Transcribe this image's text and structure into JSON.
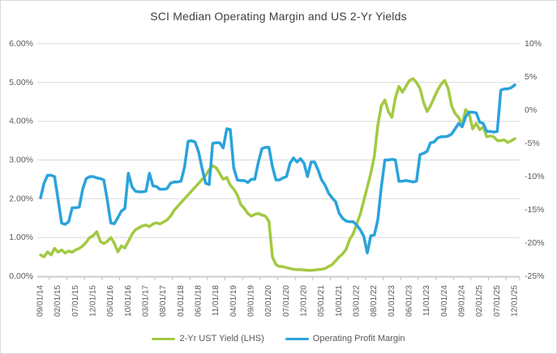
{
  "chart_data": {
    "type": "line",
    "title": "SCI Median Operating Margin and US 2-Yr Yields",
    "grid": "horizontal",
    "legend_position": "bottom",
    "x_frequency": "monthly",
    "x_tick_labels": [
      "09/01/14",
      "02/01/15",
      "07/01/15",
      "12/01/15",
      "05/01/16",
      "10/01/16",
      "03/01/17",
      "08/01/17",
      "01/01/18",
      "06/01/18",
      "11/01/18",
      "04/01/19",
      "09/01/19",
      "02/01/20",
      "07/01/20",
      "12/01/20",
      "05/01/21",
      "10/01/21",
      "03/01/22",
      "08/01/22",
      "01/01/23",
      "06/01/23",
      "11/01/23",
      "04/01/24",
      "09/01/24",
      "02/01/25",
      "07/01/25",
      "12/01/25"
    ],
    "x_label_interval_months": 5,
    "left_axis": {
      "ticks": [
        "6.00%",
        "5.00%",
        "4.00%",
        "3.00%",
        "2.00%",
        "1.00%",
        "0.00%"
      ],
      "tick_values": [
        6,
        5,
        4,
        3,
        2,
        1,
        0
      ],
      "min": 0,
      "max": 6
    },
    "right_axis": {
      "ticks": [
        "10%",
        "5%",
        "0%",
        "-5%",
        "-10%",
        "-15%",
        "-20%",
        "-25%"
      ],
      "tick_values": [
        10,
        5,
        0,
        -5,
        -10,
        -15,
        -20,
        -25
      ],
      "min": -25,
      "max": 10
    },
    "series": [
      {
        "name": "2-Yr UST Yield (LHS)",
        "axis": "left",
        "color": "#a3c942",
        "values": [
          0.55,
          0.5,
          0.63,
          0.55,
          0.72,
          0.62,
          0.68,
          0.6,
          0.65,
          0.62,
          0.68,
          0.72,
          0.78,
          0.88,
          1.0,
          1.05,
          1.15,
          0.9,
          0.84,
          0.9,
          1.0,
          0.85,
          0.63,
          0.78,
          0.73,
          0.9,
          1.08,
          1.2,
          1.25,
          1.3,
          1.32,
          1.28,
          1.35,
          1.38,
          1.35,
          1.4,
          1.45,
          1.55,
          1.7,
          1.8,
          1.9,
          2.0,
          2.1,
          2.2,
          2.3,
          2.4,
          2.5,
          2.6,
          2.75,
          2.85,
          2.8,
          2.65,
          2.5,
          2.55,
          2.35,
          2.25,
          2.1,
          1.85,
          1.75,
          1.62,
          1.55,
          1.6,
          1.62,
          1.58,
          1.55,
          1.42,
          0.5,
          0.3,
          0.25,
          0.25,
          0.22,
          0.2,
          0.18,
          0.17,
          0.17,
          0.16,
          0.15,
          0.15,
          0.16,
          0.17,
          0.18,
          0.2,
          0.25,
          0.3,
          0.4,
          0.5,
          0.58,
          0.7,
          0.95,
          1.1,
          1.35,
          1.6,
          1.95,
          2.3,
          2.65,
          3.1,
          3.9,
          4.4,
          4.55,
          4.25,
          4.1,
          4.6,
          4.9,
          4.75,
          4.9,
          5.05,
          5.1,
          5.0,
          4.85,
          4.5,
          4.25,
          4.4,
          4.6,
          4.8,
          4.95,
          5.05,
          4.85,
          4.4,
          4.2,
          4.1,
          3.9,
          4.3,
          4.2,
          3.8,
          3.95,
          3.78,
          3.85,
          3.6,
          3.62,
          3.6,
          3.5,
          3.5,
          3.52,
          3.45,
          3.5,
          3.55
        ]
      },
      {
        "name": "Operating Profit Margin",
        "axis": "right",
        "color": "#2aa3db",
        "values": [
          -13.2,
          -11.0,
          -9.8,
          -9.8,
          -10.0,
          -13.5,
          -17.0,
          -17.2,
          -16.8,
          -14.7,
          -14.7,
          -14.6,
          -11.9,
          -10.3,
          -10.0,
          -10.0,
          -10.2,
          -10.3,
          -10.5,
          -13.5,
          -17.0,
          -17.1,
          -16.2,
          -15.2,
          -14.8,
          -9.5,
          -11.5,
          -12.2,
          -12.3,
          -12.3,
          -12.2,
          -9.5,
          -11.4,
          -11.5,
          -11.9,
          -11.9,
          -11.8,
          -11.0,
          -10.8,
          -10.8,
          -10.7,
          -8.5,
          -4.7,
          -4.6,
          -4.8,
          -6.3,
          -8.8,
          -11.0,
          -11.2,
          -5.0,
          -4.9,
          -4.9,
          -5.7,
          -2.8,
          -2.9,
          -8.7,
          -10.5,
          -10.6,
          -10.6,
          -10.9,
          -10.4,
          -10.4,
          -7.8,
          -5.8,
          -5.6,
          -5.6,
          -8.5,
          -10.5,
          -10.5,
          -10.2,
          -10.0,
          -8.0,
          -7.2,
          -7.8,
          -7.3,
          -8.0,
          -10.0,
          -7.8,
          -7.8,
          -9.0,
          -10.5,
          -11.3,
          -12.5,
          -13.2,
          -13.8,
          -15.5,
          -16.3,
          -16.7,
          -16.8,
          -16.8,
          -17.3,
          -18.0,
          -19.0,
          -21.5,
          -18.9,
          -18.8,
          -16.5,
          -11.6,
          -7.5,
          -7.5,
          -7.4,
          -7.5,
          -10.7,
          -10.7,
          -10.6,
          -10.7,
          -10.8,
          -10.7,
          -6.7,
          -6.5,
          -6.2,
          -4.9,
          -4.8,
          -4.2,
          -4.0,
          -4.0,
          -3.9,
          -3.6,
          -2.8,
          -2.0,
          -2.5,
          -1.0,
          -0.3,
          -0.3,
          -0.4,
          -1.8,
          -2.0,
          -3.2,
          -3.2,
          -3.3,
          -3.2,
          3.0,
          3.2,
          3.2,
          3.4,
          3.8
        ]
      }
    ]
  },
  "colors": {
    "background": "#ffffff",
    "border": "#d9d9d9",
    "gridline": "#d9d9d9",
    "axis_line": "#bfbfbf",
    "axis_text": "#595959",
    "title_text": "#3f3f3f"
  }
}
